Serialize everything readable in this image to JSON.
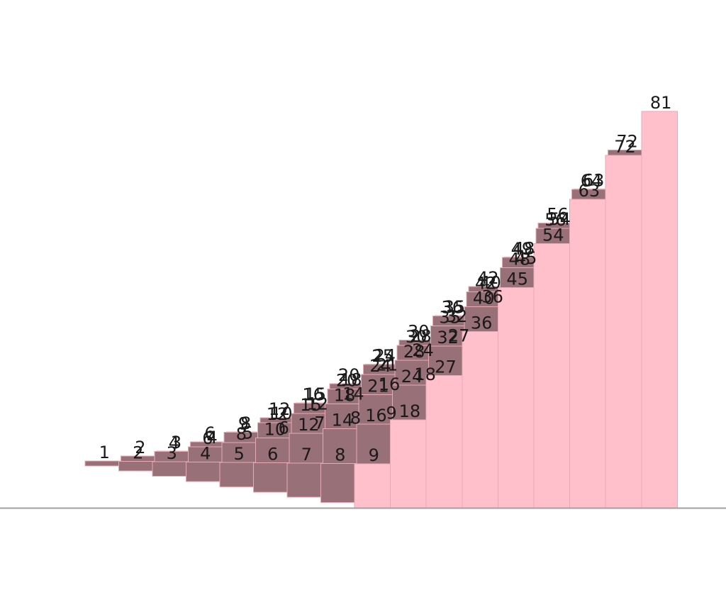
{
  "chart_data": {
    "type": "bar",
    "layout": "3d-staircase",
    "categories": [
      "1",
      "2",
      "3",
      "4",
      "5",
      "6",
      "7",
      "8",
      "9"
    ],
    "series": [
      {
        "values": [
          1,
          2,
          3,
          4,
          5,
          6,
          7,
          8,
          9
        ]
      },
      {
        "values": [
          2,
          4,
          6,
          8,
          10,
          12,
          14,
          16,
          18
        ]
      },
      {
        "values": [
          3,
          6,
          9,
          12,
          15,
          18,
          21,
          24,
          27
        ]
      },
      {
        "values": [
          4,
          8,
          12,
          16,
          20,
          24,
          28,
          32,
          36
        ]
      },
      {
        "values": [
          5,
          10,
          15,
          20,
          25,
          30,
          35,
          40,
          45
        ]
      },
      {
        "values": [
          6,
          12,
          18,
          24,
          30,
          36,
          42,
          48,
          54
        ]
      },
      {
        "values": [
          7,
          14,
          21,
          28,
          35,
          42,
          49,
          56,
          63
        ]
      },
      {
        "values": [
          8,
          16,
          24,
          32,
          40,
          48,
          56,
          64,
          72
        ]
      },
      {
        "values": [
          9,
          18,
          27,
          36,
          45,
          54,
          63,
          72,
          81
        ]
      }
    ],
    "ylim": [
      0,
      81
    ],
    "colors": {
      "front": "#ffc0cb",
      "shadow": "#987078",
      "edge": "#e8a8b4",
      "axis": "#a0a0a0"
    },
    "grid": false,
    "legend": "none"
  }
}
